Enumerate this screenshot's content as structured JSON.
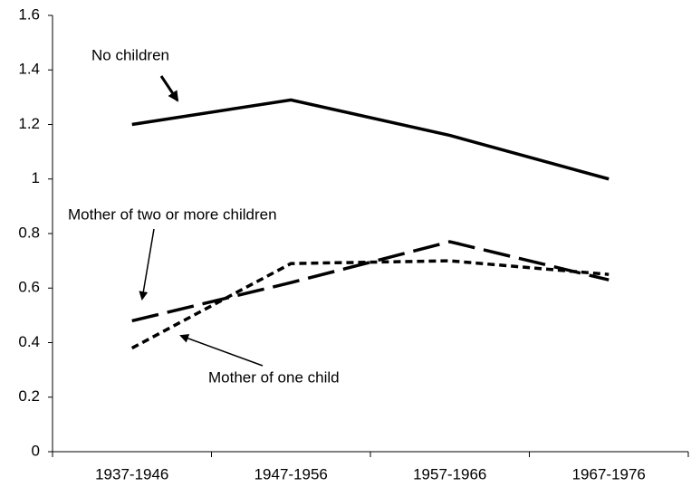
{
  "chart_data": {
    "type": "line",
    "categories": [
      "1937-1946",
      "1947-1956",
      "1957-1966",
      "1967-1976"
    ],
    "series": [
      {
        "name": "No children",
        "color": "#000000",
        "dash": "solid",
        "values": [
          1.2,
          1.29,
          1.16,
          1.0
        ]
      },
      {
        "name": "Mother of two or more children",
        "color": "#000000",
        "dash": "long",
        "values": [
          0.48,
          0.62,
          0.77,
          0.63
        ]
      },
      {
        "name": "Mother of one child",
        "color": "#000000",
        "dash": "short",
        "values": [
          0.38,
          0.69,
          0.7,
          0.65
        ]
      }
    ],
    "ylim": [
      0,
      1.6
    ],
    "yticks": [
      0,
      0.2,
      0.4,
      0.6,
      0.8,
      1,
      1.2,
      1.4,
      1.6
    ],
    "grid": false
  }
}
